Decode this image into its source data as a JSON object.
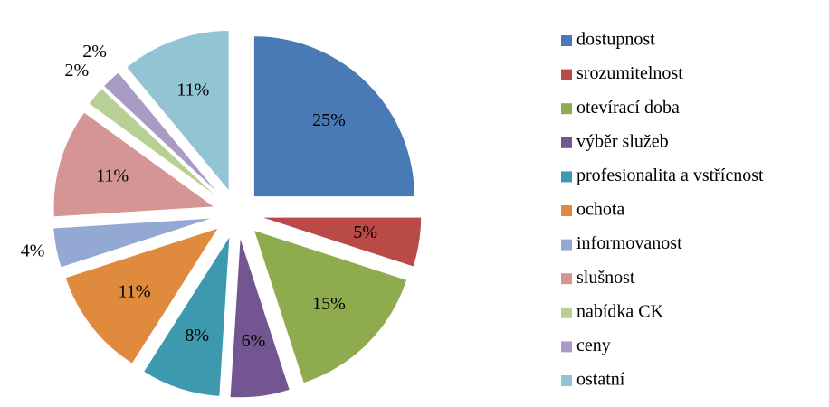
{
  "chart_data": {
    "type": "pie",
    "categories": [
      "dostupnost",
      "srozumitelnost",
      "otevírací doba",
      "výběr služeb",
      "profesionalita a vstřícnost",
      "ochota",
      "informovanost",
      "slušnost",
      "nabídka CK",
      "ceny",
      "ostatní"
    ],
    "values": [
      25,
      5,
      15,
      6,
      8,
      11,
      4,
      11,
      2,
      2,
      11
    ],
    "value_labels": [
      "25%",
      "5%",
      "15%",
      "6%",
      "8%",
      "11%",
      "4%",
      "11%",
      "2%",
      "2%",
      "11%"
    ],
    "colors": [
      "#4a7ab5",
      "#b94a48",
      "#8eab4e",
      "#735691",
      "#3d9aae",
      "#df8a3d",
      "#93a9d3",
      "#d49594",
      "#b8d094",
      "#a99bc4",
      "#92c4d4"
    ],
    "legend": "right"
  }
}
